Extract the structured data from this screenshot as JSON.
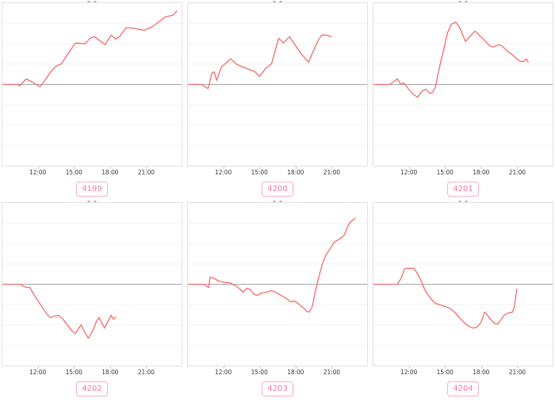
{
  "colors": {
    "line": "#f46b6b",
    "plot_border": "#e1e1e1",
    "grid_line": "#f2f2f2",
    "zero_line": "#a6a6a6",
    "tick_mark": "#cccccc",
    "tick_text": "#3a3a3a",
    "badge_text": "#ee7d9d",
    "badge_border": "#f6b0c3",
    "title_remnant": "#b3b3b3"
  },
  "chart_data": [
    {
      "type": "line",
      "label": "4199",
      "x_ticks": [
        "12:00",
        "15:00",
        "18:00",
        "21:00"
      ],
      "x_tick_hours": [
        12,
        15,
        18,
        21
      ],
      "x_range_hours": [
        9,
        24
      ],
      "ylim": [
        -1.02,
        1.02
      ],
      "baseline": 0,
      "points": [
        [
          9,
          0
        ],
        [
          10.3,
          0
        ],
        [
          10.45,
          -0.02
        ],
        [
          11,
          0.07
        ],
        [
          11.5,
          0.03
        ],
        [
          12.15,
          -0.03
        ],
        [
          12.6,
          0.06
        ],
        [
          13.05,
          0.16
        ],
        [
          13.5,
          0.23
        ],
        [
          13.95,
          0.26
        ],
        [
          14.25,
          0.33
        ],
        [
          14.7,
          0.43
        ],
        [
          15,
          0.5
        ],
        [
          15.2,
          0.52
        ],
        [
          15.9,
          0.51
        ],
        [
          16.35,
          0.58
        ],
        [
          16.7,
          0.6
        ],
        [
          17.6,
          0.5
        ],
        [
          18.1,
          0.62
        ],
        [
          18.45,
          0.57
        ],
        [
          18.8,
          0.6
        ],
        [
          19.35,
          0.71
        ],
        [
          19.8,
          0.71
        ],
        [
          20.85,
          0.68
        ],
        [
          21.5,
          0.72
        ],
        [
          22.05,
          0.78
        ],
        [
          22.65,
          0.85
        ],
        [
          23.3,
          0.87
        ],
        [
          23.6,
          0.92
        ]
      ]
    },
    {
      "type": "line",
      "label": "4200",
      "x_ticks": [
        "12:00",
        "15:00",
        "18:00",
        "21:00"
      ],
      "x_tick_hours": [
        12,
        15,
        18,
        21
      ],
      "x_range_hours": [
        9,
        24
      ],
      "ylim": [
        -1.02,
        1.02
      ],
      "baseline": 0,
      "points": [
        [
          9,
          0
        ],
        [
          10.2,
          0
        ],
        [
          10.5,
          -0.04
        ],
        [
          10.7,
          -0.05
        ],
        [
          11,
          0.14
        ],
        [
          11.2,
          0.16
        ],
        [
          11.4,
          0.05
        ],
        [
          11.8,
          0.22
        ],
        [
          12.6,
          0.32
        ],
        [
          13.1,
          0.25
        ],
        [
          13.6,
          0.22
        ],
        [
          14.1,
          0.19
        ],
        [
          14.6,
          0.16
        ],
        [
          15,
          0.1
        ],
        [
          15.5,
          0.2
        ],
        [
          16,
          0.26
        ],
        [
          16.6,
          0.58
        ],
        [
          17,
          0.52
        ],
        [
          17.5,
          0.6
        ],
        [
          18,
          0.49
        ],
        [
          18.4,
          0.4
        ],
        [
          18.8,
          0.33
        ],
        [
          19.1,
          0.28
        ],
        [
          19.5,
          0.42
        ],
        [
          19.9,
          0.55
        ],
        [
          20.2,
          0.62
        ],
        [
          20.6,
          0.62
        ],
        [
          21,
          0.6
        ]
      ]
    },
    {
      "type": "line",
      "label": "4201",
      "x_ticks": [
        "12:00",
        "15:00",
        "18:00",
        "21:00"
      ],
      "x_tick_hours": [
        12,
        15,
        18,
        21
      ],
      "x_range_hours": [
        9,
        24
      ],
      "ylim": [
        -1.02,
        1.02
      ],
      "baseline": 0,
      "points": [
        [
          9,
          0
        ],
        [
          10.35,
          0
        ],
        [
          10.65,
          0.03
        ],
        [
          11,
          0.07
        ],
        [
          11.3,
          0
        ],
        [
          11.55,
          0.02
        ],
        [
          12,
          -0.07
        ],
        [
          12.3,
          -0.12
        ],
        [
          12.7,
          -0.16
        ],
        [
          13.1,
          -0.08
        ],
        [
          13.4,
          -0.06
        ],
        [
          13.7,
          -0.11
        ],
        [
          13.95,
          -0.1
        ],
        [
          14.2,
          -0.03
        ],
        [
          14.5,
          0.2
        ],
        [
          14.9,
          0.45
        ],
        [
          15.2,
          0.65
        ],
        [
          15.55,
          0.76
        ],
        [
          15.9,
          0.78
        ],
        [
          16.2,
          0.72
        ],
        [
          16.7,
          0.54
        ],
        [
          17.5,
          0.67
        ],
        [
          18.2,
          0.57
        ],
        [
          18.7,
          0.49
        ],
        [
          19,
          0.47
        ],
        [
          19.5,
          0.5
        ],
        [
          19.8,
          0.48
        ],
        [
          20.2,
          0.42
        ],
        [
          20.65,
          0.37
        ],
        [
          21,
          0.32
        ],
        [
          21.3,
          0.29
        ],
        [
          21.55,
          0.29
        ],
        [
          21.8,
          0.32
        ],
        [
          21.95,
          0.28
        ]
      ]
    },
    {
      "type": "line",
      "label": "4202",
      "x_ticks": [
        "12:00",
        "15:00",
        "18:00",
        "21:00"
      ],
      "x_tick_hours": [
        12,
        15,
        18,
        21
      ],
      "x_range_hours": [
        9,
        24
      ],
      "ylim": [
        -1.02,
        1.02
      ],
      "baseline": 0,
      "points": [
        [
          9,
          0
        ],
        [
          10.5,
          0
        ],
        [
          10.7,
          -0.02
        ],
        [
          11,
          -0.04
        ],
        [
          11.3,
          -0.04
        ],
        [
          11.6,
          -0.12
        ],
        [
          12,
          -0.21
        ],
        [
          12.4,
          -0.3
        ],
        [
          12.75,
          -0.38
        ],
        [
          13.05,
          -0.42
        ],
        [
          13.35,
          -0.4
        ],
        [
          13.7,
          -0.39
        ],
        [
          13.95,
          -0.42
        ],
        [
          14.4,
          -0.5
        ],
        [
          14.8,
          -0.58
        ],
        [
          15.1,
          -0.62
        ],
        [
          15.4,
          -0.55
        ],
        [
          15.6,
          -0.51
        ],
        [
          15.9,
          -0.6
        ],
        [
          16.2,
          -0.68
        ],
        [
          16.6,
          -0.57
        ],
        [
          16.9,
          -0.46
        ],
        [
          17.1,
          -0.42
        ],
        [
          17.3,
          -0.48
        ],
        [
          17.55,
          -0.55
        ],
        [
          17.85,
          -0.46
        ],
        [
          18.1,
          -0.39
        ],
        [
          18.3,
          -0.44
        ],
        [
          18.5,
          -0.41
        ]
      ]
    },
    {
      "type": "line",
      "label": "4203",
      "x_ticks": [
        "12:00",
        "15:00",
        "18:00",
        "21:00"
      ],
      "x_tick_hours": [
        12,
        15,
        18,
        21
      ],
      "x_range_hours": [
        9,
        24
      ],
      "ylim": [
        -1.02,
        1.02
      ],
      "baseline": 0,
      "points": [
        [
          9,
          0
        ],
        [
          10.35,
          0
        ],
        [
          10.6,
          -0.03
        ],
        [
          10.75,
          -0.04
        ],
        [
          10.85,
          0.09
        ],
        [
          11.1,
          0.08
        ],
        [
          11.6,
          0.04
        ],
        [
          12.15,
          0.02
        ],
        [
          12.5,
          0.02
        ],
        [
          13,
          -0.02
        ],
        [
          13.35,
          -0.06
        ],
        [
          13.6,
          -0.1
        ],
        [
          13.95,
          -0.05
        ],
        [
          14.25,
          -0.07
        ],
        [
          14.5,
          -0.12
        ],
        [
          14.8,
          -0.14
        ],
        [
          15.15,
          -0.11
        ],
        [
          15.6,
          -0.1
        ],
        [
          16,
          -0.08
        ],
        [
          16.35,
          -0.1
        ],
        [
          16.8,
          -0.14
        ],
        [
          17.25,
          -0.18
        ],
        [
          17.6,
          -0.22
        ],
        [
          17.9,
          -0.21
        ],
        [
          18.2,
          -0.24
        ],
        [
          18.7,
          -0.3
        ],
        [
          18.95,
          -0.34
        ],
        [
          19.15,
          -0.35
        ],
        [
          19.35,
          -0.3
        ],
        [
          19.45,
          -0.26
        ],
        [
          19.65,
          -0.1
        ],
        [
          19.9,
          0.06
        ],
        [
          20.1,
          0.17
        ],
        [
          20.3,
          0.28
        ],
        [
          20.6,
          0.38
        ],
        [
          21,
          0.47
        ],
        [
          21.2,
          0.52
        ],
        [
          21.5,
          0.55
        ],
        [
          21.8,
          0.58
        ],
        [
          22.1,
          0.62
        ],
        [
          22.35,
          0.72
        ],
        [
          22.6,
          0.78
        ],
        [
          23,
          0.83
        ]
      ]
    },
    {
      "type": "line",
      "label": "4204",
      "x_ticks": [
        "12:00",
        "15:00",
        "18:00",
        "21:00"
      ],
      "x_tick_hours": [
        12,
        15,
        18,
        21
      ],
      "x_range_hours": [
        9,
        24
      ],
      "ylim": [
        -1.02,
        1.02
      ],
      "baseline": 0,
      "points": [
        [
          9,
          0
        ],
        [
          11,
          0
        ],
        [
          11.3,
          0.07
        ],
        [
          11.6,
          0.19
        ],
        [
          11.75,
          0.2
        ],
        [
          12.4,
          0.2
        ],
        [
          12.7,
          0.13
        ],
        [
          13,
          0.04
        ],
        [
          13.3,
          -0.07
        ],
        [
          13.55,
          -0.13
        ],
        [
          13.85,
          -0.19
        ],
        [
          14.2,
          -0.24
        ],
        [
          14.6,
          -0.26
        ],
        [
          15,
          -0.28
        ],
        [
          15.4,
          -0.3
        ],
        [
          15.8,
          -0.35
        ],
        [
          16.2,
          -0.42
        ],
        [
          16.6,
          -0.48
        ],
        [
          17,
          -0.53
        ],
        [
          17.35,
          -0.55
        ],
        [
          17.65,
          -0.54
        ],
        [
          18,
          -0.48
        ],
        [
          18.15,
          -0.42
        ],
        [
          18.3,
          -0.35
        ],
        [
          18.45,
          -0.37
        ],
        [
          18.8,
          -0.44
        ],
        [
          19.1,
          -0.49
        ],
        [
          19.4,
          -0.5
        ],
        [
          19.7,
          -0.44
        ],
        [
          20,
          -0.38
        ],
        [
          20.3,
          -0.36
        ],
        [
          20.65,
          -0.35
        ],
        [
          20.8,
          -0.28
        ],
        [
          21,
          -0.06
        ]
      ]
    }
  ]
}
